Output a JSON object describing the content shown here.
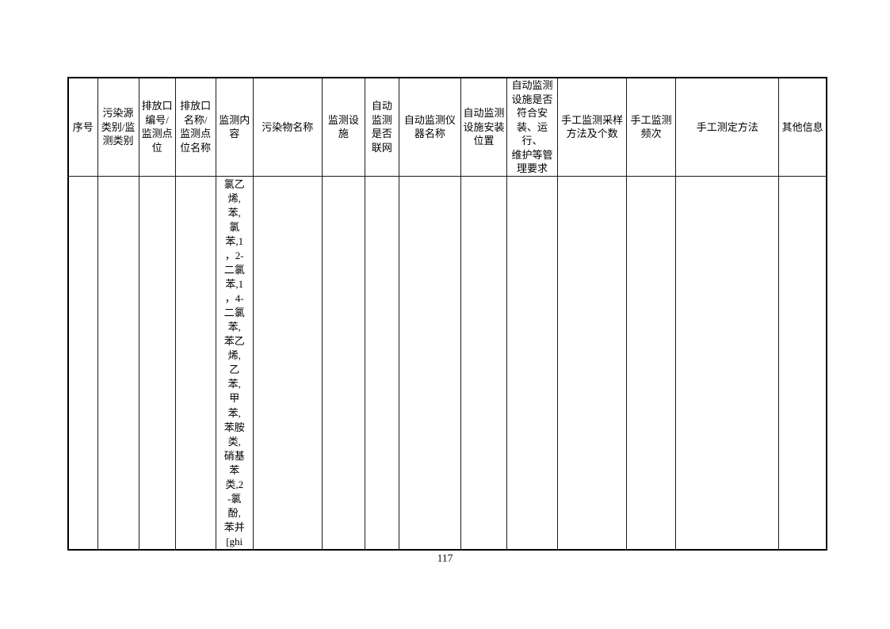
{
  "page": {
    "number": "117"
  },
  "table": {
    "columns": [
      {
        "key": "serial-number",
        "label": "序号",
        "lines": [
          "序号"
        ],
        "width": 37
      },
      {
        "key": "pollution-source-category",
        "label": "污染源类别/监测类别",
        "lines": [
          "污染源",
          "类别/监",
          "测类别"
        ],
        "width": 52
      },
      {
        "key": "outlet-number",
        "label": "排放口编号/监测点位",
        "lines": [
          "排放口",
          "编号/",
          "监测点",
          "位"
        ],
        "width": 46
      },
      {
        "key": "outlet-name",
        "label": "排放口名称/监测点位名称",
        "lines": [
          "排放口",
          "名称/",
          "监测点",
          "位名称"
        ],
        "width": 51
      },
      {
        "key": "monitoring-content",
        "label": "监测内容",
        "lines": [
          "监测内",
          "容"
        ],
        "width": 47
      },
      {
        "key": "pollutant-name",
        "label": "污染物名称",
        "lines": [
          "污染物名称"
        ],
        "width": 87
      },
      {
        "key": "monitoring-facility",
        "label": "监测设施",
        "lines": [
          "监测设施"
        ],
        "width": 54
      },
      {
        "key": "auto-monitoring-networked",
        "label": "自动监测是否联网",
        "lines": [
          "自动",
          "监测",
          "是否",
          "联网"
        ],
        "width": 43
      },
      {
        "key": "auto-monitoring-instrument",
        "label": "自动监测仪器名称",
        "lines": [
          "自动监测仪",
          "器名称"
        ],
        "width": 78
      },
      {
        "key": "auto-monitoring-install-location",
        "label": "自动监测设施安装位置",
        "lines": [
          "自动监测",
          "设施安装",
          "位置"
        ],
        "width": 58
      },
      {
        "key": "auto-monitoring-compliance",
        "label": "自动监测设施是否符合安装、运行、维护等管理要求",
        "lines": [
          "自动监测",
          "设施是否",
          "符合安",
          "装、运行、",
          "维护等管",
          "理要求"
        ],
        "width": 64
      },
      {
        "key": "manual-sampling-method",
        "label": "手工监测采样方法及个数",
        "lines": [
          "手工监测采样",
          "方法及个数"
        ],
        "width": 87
      },
      {
        "key": "manual-monitoring-frequency",
        "label": "手工监测频次",
        "lines": [
          "手工监测",
          "频次"
        ],
        "width": 62
      },
      {
        "key": "manual-determination-method",
        "label": "手工测定方法",
        "lines": [
          "手工测定方法"
        ],
        "width": 130
      },
      {
        "key": "other-info",
        "label": "其他信息",
        "lines": [
          "其他信息"
        ],
        "width": 60
      }
    ],
    "row": {
      "monitoring_content": {
        "column_key": "monitoring-content",
        "text": "氯乙烯,苯,氯苯,1，2-二氯苯,1，4-二氯苯,苯乙烯,乙苯,甲苯,苯胺类,硝基苯类,2-氯酚,苯并[ghi",
        "lines": [
          "氯乙",
          "烯,",
          "苯,",
          "氯",
          "苯,1",
          "，2-",
          "二氯",
          "苯,1",
          "，4-",
          "二氯",
          "苯,",
          "苯乙",
          "烯,",
          "乙",
          "苯,",
          "甲",
          "苯,",
          "苯胺",
          "类,",
          "硝基",
          "苯",
          "类,2",
          "-氯",
          "酚,",
          "苯并",
          "[ghi"
        ]
      }
    }
  }
}
